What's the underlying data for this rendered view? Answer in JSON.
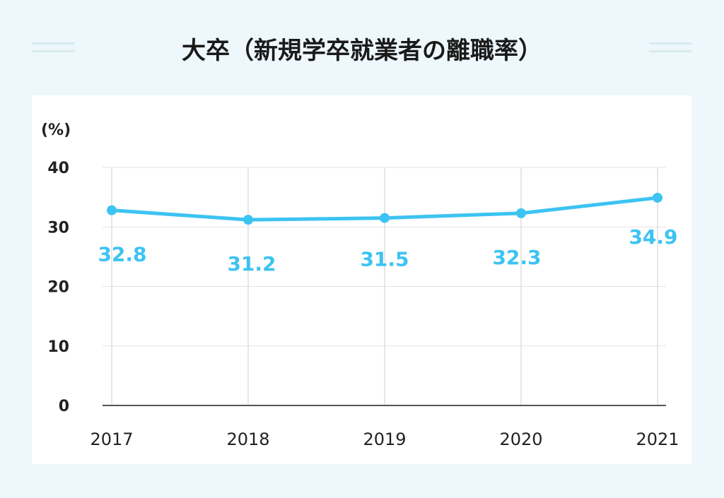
{
  "title": "大卒（新規学卒就業者の離職率）",
  "chart_data": {
    "type": "line",
    "title": "大卒（新規学卒就業者の離職率）",
    "ylabel": "(%)",
    "xlabel": "",
    "categories": [
      "2017",
      "2018",
      "2019",
      "2020",
      "2021"
    ],
    "series": [
      {
        "values": [
          32.8,
          31.2,
          31.5,
          32.3,
          34.9
        ]
      }
    ],
    "data_labels": [
      "32.8",
      "31.2",
      "31.5",
      "32.3",
      "34.9"
    ],
    "ylim": [
      0,
      40
    ],
    "yticks": [
      "0",
      "10",
      "20",
      "30",
      "40"
    ],
    "grid": true,
    "line_color": "#3cc3f2"
  }
}
